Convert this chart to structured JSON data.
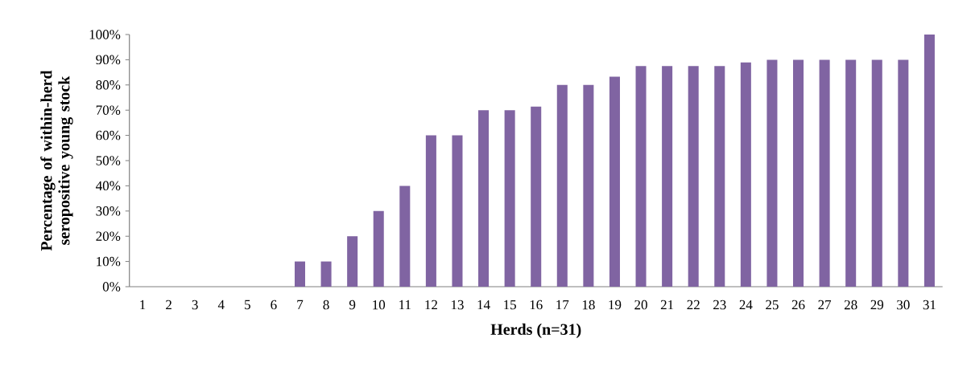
{
  "chart_data": {
    "type": "bar",
    "xlabel": "Herds (n=31)",
    "ylabel": "Percentage of within-herd seropositive  young stock",
    "categories": [
      "1",
      "2",
      "3",
      "4",
      "5",
      "6",
      "7",
      "8",
      "9",
      "10",
      "11",
      "12",
      "13",
      "14",
      "15",
      "16",
      "17",
      "18",
      "19",
      "20",
      "21",
      "22",
      "23",
      "24",
      "25",
      "26",
      "27",
      "28",
      "29",
      "30",
      "31"
    ],
    "values": [
      0,
      0,
      0,
      0,
      0,
      0,
      10,
      10,
      20,
      30,
      40,
      60,
      60,
      70,
      70,
      71.4,
      80,
      80,
      83.3,
      87.5,
      87.5,
      87.5,
      87.5,
      88.9,
      90,
      90,
      90,
      90,
      90,
      90,
      100
    ],
    "color": "#8064a2",
    "ylim": [
      0,
      100
    ],
    "yticks": [
      {
        "value": 0,
        "label": "0%"
      },
      {
        "value": 10,
        "label": "10%"
      },
      {
        "value": 20,
        "label": "20%"
      },
      {
        "value": 30,
        "label": "30%"
      },
      {
        "value": 40,
        "label": "40%"
      },
      {
        "value": 50,
        "label": "50%"
      },
      {
        "value": 60,
        "label": "60%"
      },
      {
        "value": 70,
        "label": "70%"
      },
      {
        "value": 80,
        "label": "80%"
      },
      {
        "value": 90,
        "label": "90%"
      },
      {
        "value": 100,
        "label": "100%"
      }
    ],
    "grid": false
  }
}
